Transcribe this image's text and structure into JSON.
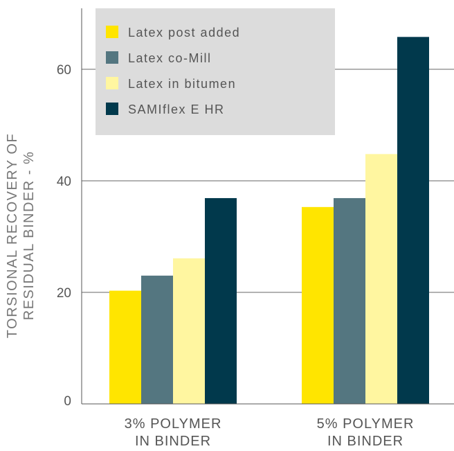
{
  "chart_data": {
    "type": "bar",
    "ylabel": [
      "TORSIONAL RECOVERY OF",
      "RESIDUAL BINDER - %"
    ],
    "xlabel": "",
    "ylim": [
      0,
      72
    ],
    "yticks": [
      0,
      20,
      40,
      60
    ],
    "gridlines": [
      20,
      40,
      60
    ],
    "categories": [
      [
        "3% POLYMER",
        "IN BINDER"
      ],
      [
        "5% POLYMER",
        "IN BINDER"
      ]
    ],
    "legend_position": "top-left",
    "series": [
      {
        "name": "Latex post added",
        "color": "#FFE500",
        "values": [
          20.3,
          35.3
        ]
      },
      {
        "name": "Latex co-Mill",
        "color": "#547680",
        "values": [
          23.0,
          36.9
        ]
      },
      {
        "name": "Latex in bitumen",
        "color": "#FFF6A0",
        "values": [
          26.1,
          44.8
        ]
      },
      {
        "name": "SAMIflex E HR",
        "color": "#01394C",
        "values": [
          36.9,
          65.8
        ]
      }
    ]
  }
}
